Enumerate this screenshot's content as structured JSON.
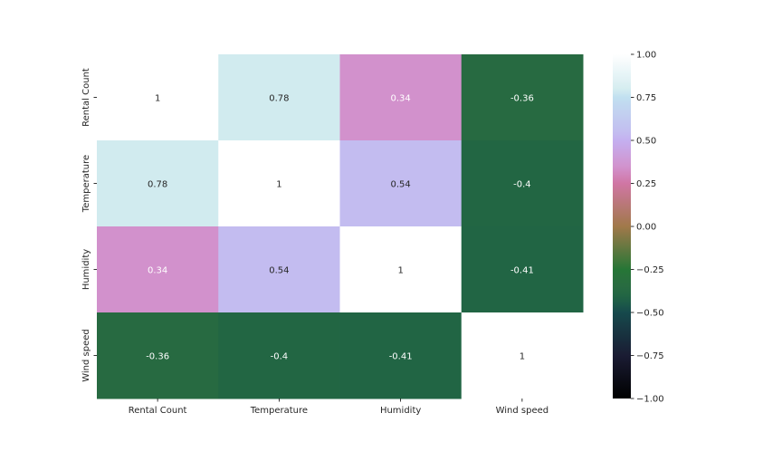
{
  "chart_data": {
    "type": "heatmap",
    "title": "",
    "xlabel": "",
    "ylabel": "",
    "x_categories": [
      "Rental Count",
      "Temperature",
      "Humidity",
      "Wind speed"
    ],
    "y_categories": [
      "Rental Count",
      "Temperature",
      "Humidity",
      "Wind speed"
    ],
    "values": [
      [
        1,
        0.78,
        0.34,
        -0.36
      ],
      [
        0.78,
        1,
        0.54,
        -0.4
      ],
      [
        0.34,
        0.54,
        1,
        -0.41
      ],
      [
        -0.36,
        -0.4,
        -0.41,
        1
      ]
    ],
    "annotations": [
      [
        "1",
        "0.78",
        "0.34",
        "-0.36"
      ],
      [
        "0.78",
        "1",
        "0.54",
        "-0.4"
      ],
      [
        "0.34",
        "0.54",
        "1",
        "-0.41"
      ],
      [
        "-0.36",
        "-0.4",
        "-0.41",
        "1"
      ]
    ],
    "colormap": "cubehelix",
    "vmin": -1,
    "vmax": 1,
    "colorbar_ticks": [
      1.0,
      0.75,
      0.5,
      0.25,
      0.0,
      -0.25,
      -0.5,
      -0.75,
      -1.0
    ],
    "colorbar_tick_labels": [
      "1.00",
      "0.75",
      "0.50",
      "0.25",
      "0.00",
      "−0.25",
      "−0.50",
      "−0.75",
      "−1.00"
    ],
    "grid": false,
    "colors": {
      "cell_1": "#ffffff",
      "cell_0.78": "#d1ebef",
      "cell_0.54": "#c3bcf0",
      "cell_0.34": "#d291cc",
      "cell_-0.36": "#296e3f",
      "cell_-0.4": "#276a41",
      "cell_-0.41": "#216544"
    }
  }
}
